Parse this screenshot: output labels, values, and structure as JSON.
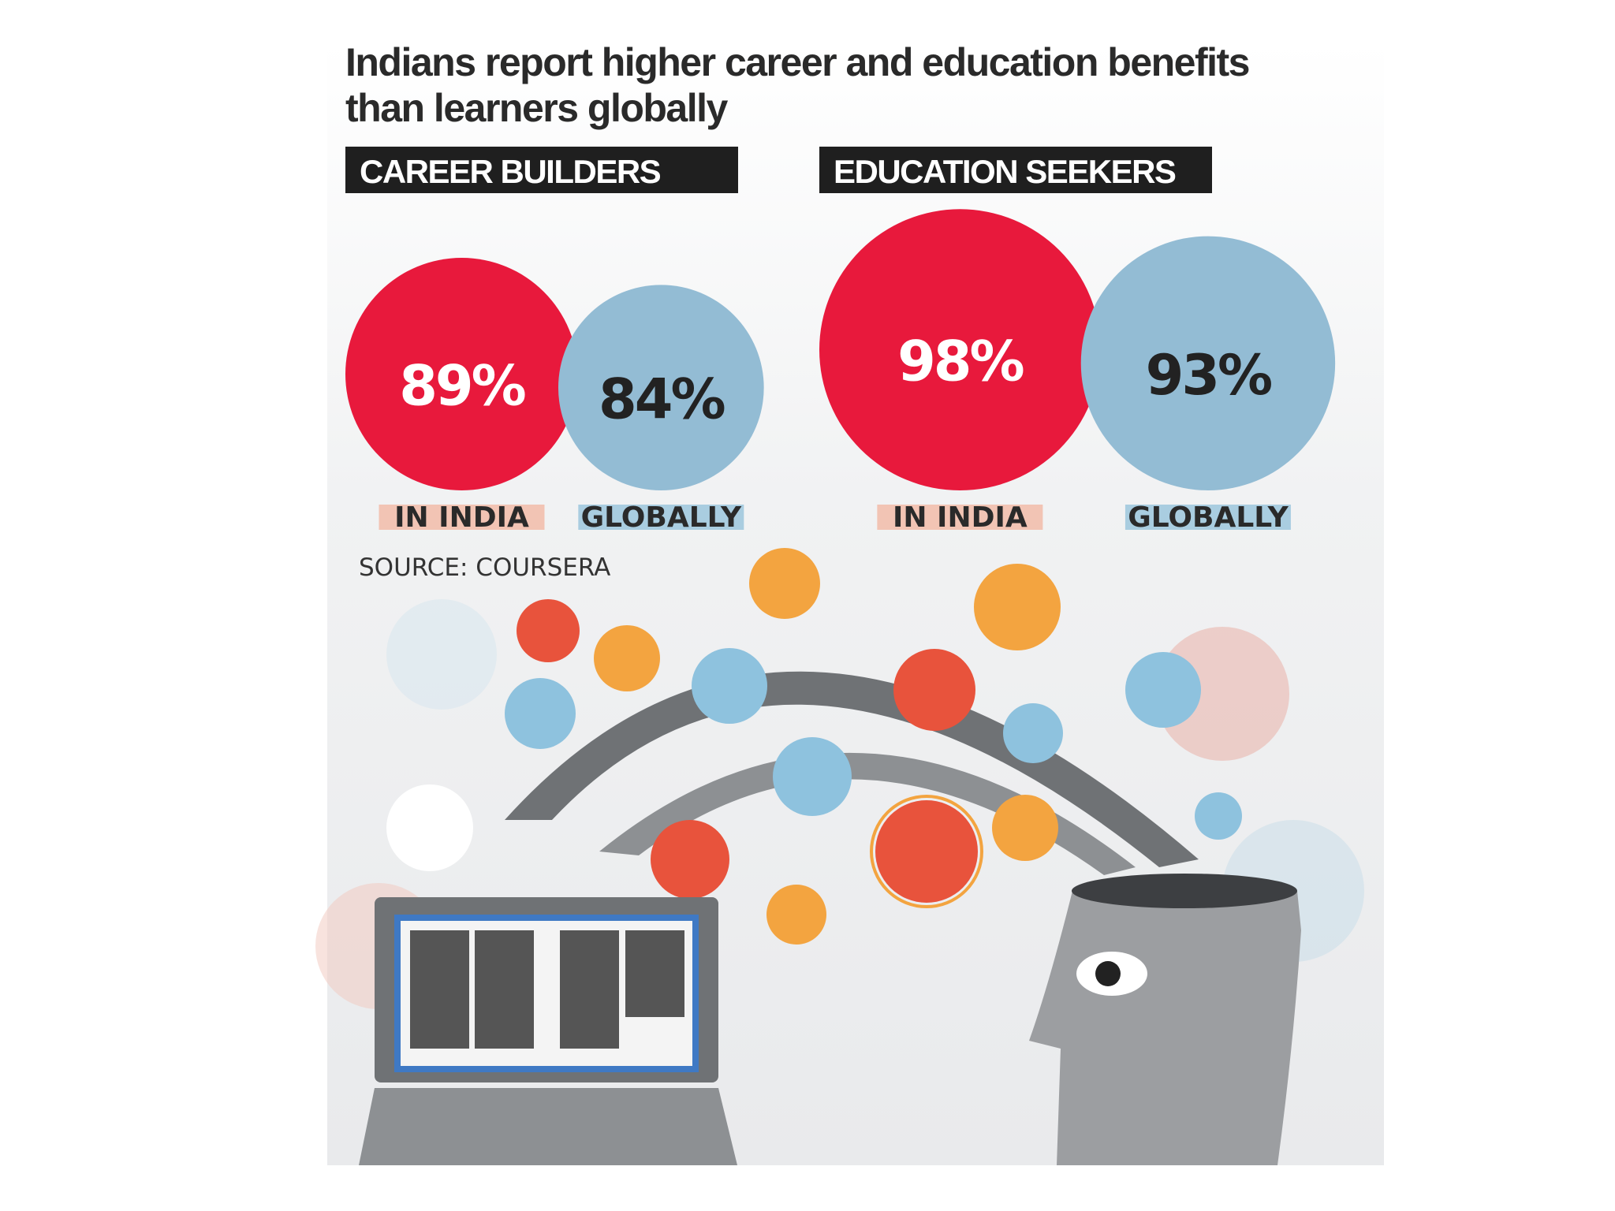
{
  "title_lines": [
    "Indians report higher career and education benefits",
    "than learners globally"
  ],
  "source": "SOURCE: COURSERA",
  "chart_data": [
    {
      "type": "bubble",
      "title": "CAREER BUILDERS",
      "categories": [
        "IN INDIA",
        "GLOBALLY"
      ],
      "values": [
        89,
        84
      ],
      "value_labels": [
        "89%",
        "84%"
      ],
      "colors": [
        "#e8193c",
        "#93bcd4"
      ],
      "label_colors": [
        "#ffffff",
        "#222222"
      ],
      "band_colors": [
        "#f2c4b4",
        "#a9cde0"
      ]
    },
    {
      "type": "bubble",
      "title": "EDUCATION SEEKERS",
      "categories": [
        "IN INDIA",
        "GLOBALLY"
      ],
      "values": [
        98,
        93
      ],
      "value_labels": [
        "98%",
        "93%"
      ],
      "colors": [
        "#e8193c",
        "#93bcd4"
      ],
      "label_colors": [
        "#ffffff",
        "#222222"
      ],
      "band_colors": [
        "#f2c4b4",
        "#a9cde0"
      ]
    }
  ]
}
